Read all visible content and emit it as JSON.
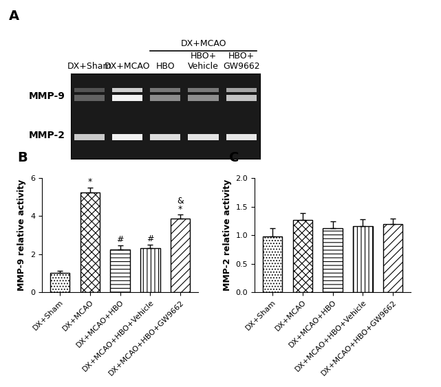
{
  "gel": {
    "panel": "A",
    "group_label": "DX+MCAO",
    "lanes": [
      "DX+Sham",
      "DX+MCAO",
      "HBO",
      "HBO+\nVehicle",
      "HBO+\nGW9662"
    ],
    "bands": [
      "MMP-9",
      "MMP-2"
    ]
  },
  "chart_data": [
    {
      "type": "bar",
      "panel": "B",
      "ylabel": "MMP-9 relative activity",
      "categories": [
        "DX+Sham",
        "DX+MCAO",
        "DX+MCAO+HBO",
        "DX+MCAO+HBO+Vehicle",
        "DX+MCAO+HBO+GW9662"
      ],
      "values": [
        1.0,
        5.25,
        2.25,
        2.3,
        3.85
      ],
      "errors": [
        0.12,
        0.25,
        0.22,
        0.2,
        0.22
      ],
      "significance": [
        [],
        [
          "*"
        ],
        [
          "#"
        ],
        [
          "#"
        ],
        [
          "&",
          "*"
        ]
      ],
      "color": "#ffffff",
      "ylim": [
        0,
        6
      ],
      "yticks": [
        0,
        2,
        4,
        6
      ]
    },
    {
      "type": "bar",
      "panel": "C",
      "ylabel": "MMP-2 relative activity",
      "categories": [
        "DX+Sham",
        "DX+MCAO",
        "DX+MCAO+HBO",
        "DX+MCAO+HBO+Vehicle",
        "DX+MCAO+HBO+GW9662"
      ],
      "values": [
        0.98,
        1.27,
        1.12,
        1.16,
        1.19
      ],
      "errors": [
        0.14,
        0.11,
        0.12,
        0.12,
        0.1
      ],
      "significance": [
        [],
        [],
        [],
        [],
        []
      ],
      "color": "#ffffff",
      "ylim": [
        0,
        2.0
      ],
      "yticks": [
        {
          "value": 0,
          "label": "0.0"
        },
        {
          "value": 0.5,
          "label": "0.5"
        },
        {
          "value": 1.0,
          "label": "1.0"
        },
        {
          "value": 1.5,
          "label": "1.5"
        },
        {
          "value": 2.0,
          "label": "2.0"
        }
      ]
    }
  ]
}
